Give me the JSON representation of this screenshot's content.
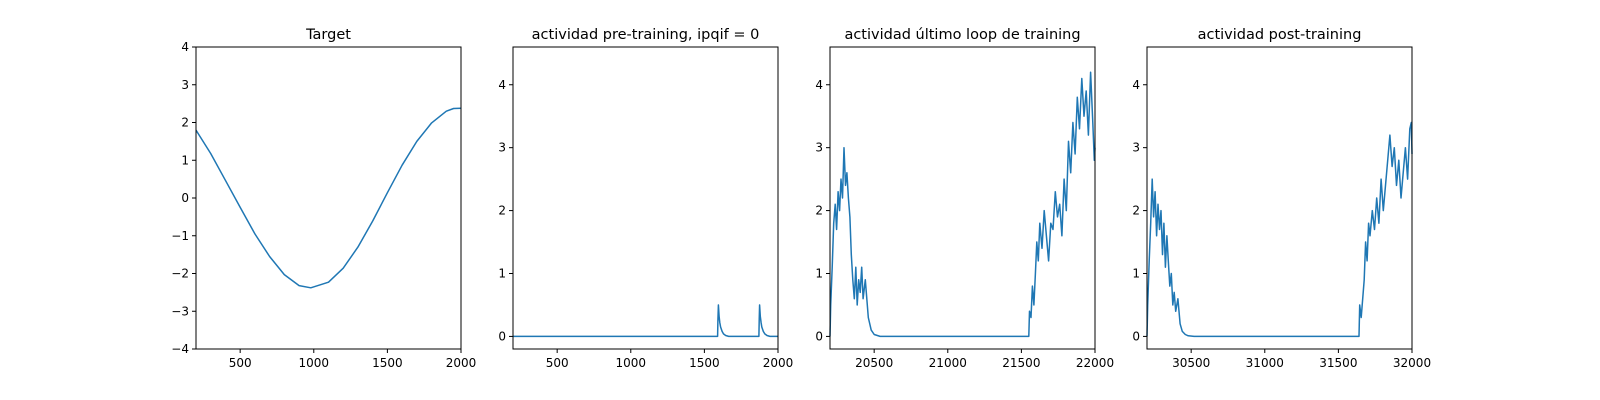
{
  "chart_data": [
    {
      "type": "line",
      "title": "Target",
      "xlim": [
        200,
        2000
      ],
      "ylim": [
        -4,
        4
      ],
      "xticks": [
        500,
        1000,
        1500,
        2000
      ],
      "xtick_labels": [
        "500",
        "1000",
        "1500",
        "2000"
      ],
      "yticks": [
        -4,
        -3,
        -2,
        -1,
        0,
        1,
        2,
        3,
        4
      ],
      "ytick_labels": [
        "−4",
        "−3",
        "−2",
        "−1",
        "0",
        "1",
        "2",
        "3",
        "4"
      ],
      "color": "#1f77b4",
      "series": [
        {
          "x": [
            200,
            300,
            400,
            500,
            600,
            700,
            800,
            900,
            980,
            1100,
            1200,
            1300,
            1400,
            1500,
            1600,
            1700,
            1800,
            1900,
            1950,
            2000
          ],
          "y": [
            1.8,
            1.18,
            0.47,
            -0.25,
            -0.95,
            -1.55,
            -2.03,
            -2.32,
            -2.38,
            -2.23,
            -1.86,
            -1.3,
            -0.61,
            0.14,
            0.87,
            1.5,
            1.99,
            2.3,
            2.37,
            2.38
          ]
        }
      ]
    },
    {
      "type": "line",
      "title": "actividad pre-training, ipqif = 0",
      "xlim": [
        200,
        2000
      ],
      "ylim": [
        -0.2,
        4.6
      ],
      "xticks": [
        500,
        1000,
        1500,
        2000
      ],
      "xtick_labels": [
        "500",
        "1000",
        "1500",
        "2000"
      ],
      "yticks": [
        0,
        1,
        2,
        3,
        4
      ],
      "ytick_labels": [
        "0",
        "1",
        "2",
        "3",
        "4"
      ],
      "color": "#1f77b4",
      "series": [
        {
          "x": [
            200,
            1590,
            1592,
            1595,
            1600,
            1605,
            1610,
            1620,
            1630,
            1645,
            1665,
            1870,
            1872,
            1875,
            1880,
            1885,
            1890,
            1900,
            1910,
            1925,
            1945,
            2000
          ],
          "y": [
            0,
            0,
            0.25,
            0.5,
            0.32,
            0.22,
            0.15,
            0.08,
            0.04,
            0.015,
            0,
            0,
            0.25,
            0.5,
            0.32,
            0.22,
            0.15,
            0.08,
            0.04,
            0.015,
            0,
            0
          ]
        }
      ]
    },
    {
      "type": "line",
      "title": "actividad último loop de training",
      "xlim": [
        20200,
        22000
      ],
      "ylim": [
        -0.2,
        4.6
      ],
      "xticks": [
        20500,
        21000,
        21500,
        22000
      ],
      "xtick_labels": [
        "20500",
        "21000",
        "21500",
        "22000"
      ],
      "yticks": [
        0,
        1,
        2,
        3,
        4
      ],
      "ytick_labels": [
        "0",
        "1",
        "2",
        "3",
        "4"
      ],
      "color": "#1f77b4",
      "series": [
        {
          "x": [
            20200,
            20205,
            20215,
            20225,
            20235,
            20245,
            20255,
            20265,
            20275,
            20285,
            20295,
            20305,
            20315,
            20325,
            20335,
            20345,
            20355,
            20365,
            20375,
            20385,
            20395,
            20405,
            20415,
            20425,
            20440,
            20460,
            20480,
            20500,
            20540,
            21550,
            21555,
            21565,
            21575,
            21585,
            21595,
            21605,
            21615,
            21625,
            21640,
            21655,
            21670,
            21685,
            21700,
            21715,
            21730,
            21745,
            21760,
            21775,
            21790,
            21805,
            21820,
            21835,
            21850,
            21865,
            21880,
            21895,
            21910,
            21925,
            21940,
            21955,
            21970,
            21985,
            21995,
            22000
          ],
          "y": [
            0,
            0.5,
            1.1,
            1.8,
            2.1,
            1.7,
            2.3,
            2.0,
            2.5,
            2.2,
            3.0,
            2.4,
            2.6,
            2.2,
            1.9,
            1.3,
            0.9,
            0.6,
            1.1,
            0.5,
            0.9,
            0.7,
            1.1,
            0.6,
            0.9,
            0.3,
            0.1,
            0.03,
            0,
            0,
            0.4,
            0.3,
            0.8,
            0.5,
            1.0,
            1.5,
            1.2,
            1.8,
            1.4,
            2.0,
            1.6,
            1.2,
            1.8,
            1.7,
            2.3,
            1.9,
            2.1,
            1.6,
            2.5,
            2.0,
            3.1,
            2.6,
            3.4,
            2.9,
            3.8,
            3.3,
            4.1,
            3.5,
            3.9,
            3.2,
            4.2,
            3.4,
            2.8,
            3.0
          ]
        }
      ]
    },
    {
      "type": "line",
      "title": "actividad post-training",
      "xlim": [
        30200,
        32000
      ],
      "ylim": [
        -0.2,
        4.6
      ],
      "xticks": [
        30500,
        31000,
        31500,
        32000
      ],
      "xtick_labels": [
        "30500",
        "31000",
        "31500",
        "32000"
      ],
      "yticks": [
        0,
        1,
        2,
        3,
        4
      ],
      "ytick_labels": [
        "0",
        "1",
        "2",
        "3",
        "4"
      ],
      "color": "#1f77b4",
      "series": [
        {
          "x": [
            30200,
            30205,
            30215,
            30225,
            30235,
            30245,
            30255,
            30265,
            30275,
            30285,
            30295,
            30305,
            30315,
            30325,
            30335,
            30345,
            30355,
            30365,
            30375,
            30385,
            30395,
            30410,
            30425,
            30440,
            30460,
            30480,
            30520,
            31640,
            31645,
            31655,
            31665,
            31675,
            31685,
            31695,
            31705,
            31715,
            31730,
            31745,
            31760,
            31775,
            31790,
            31805,
            31820,
            31835,
            31850,
            31865,
            31880,
            31895,
            31910,
            31925,
            31940,
            31955,
            31970,
            31985,
            31995,
            32000
          ],
          "y": [
            0,
            0.5,
            1.2,
            1.8,
            2.5,
            1.9,
            2.3,
            1.6,
            2.1,
            1.7,
            2.0,
            1.3,
            1.8,
            1.1,
            1.6,
            1.2,
            0.8,
            1.0,
            0.5,
            0.7,
            0.4,
            0.6,
            0.2,
            0.08,
            0.03,
            0.01,
            0,
            0,
            0.5,
            0.3,
            0.6,
            0.9,
            1.5,
            1.2,
            1.8,
            1.6,
            2.0,
            1.7,
            2.2,
            1.8,
            2.5,
            2.0,
            2.4,
            2.8,
            3.2,
            2.7,
            3.0,
            2.4,
            2.8,
            2.2,
            2.6,
            3.0,
            2.5,
            3.3,
            3.4,
            2.9
          ]
        }
      ]
    }
  ]
}
